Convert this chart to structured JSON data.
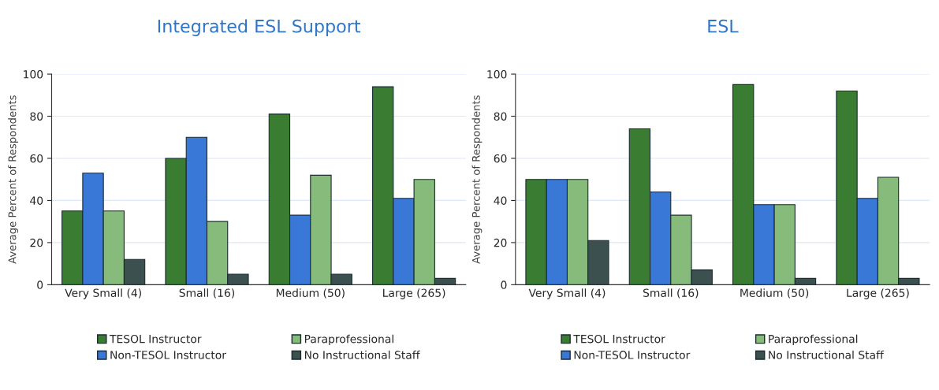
{
  "chart_data": [
    {
      "type": "bar",
      "title": "Integrated ESL Support",
      "ylabel": "Average Percent of Respondents",
      "categories": [
        "Very Small (4)",
        "Small (16)",
        "Medium (50)",
        "Large (265)"
      ],
      "ylim": [
        0,
        100
      ],
      "yticks": [
        0,
        20,
        40,
        60,
        80,
        100
      ],
      "grid": "y",
      "legend": "bottom",
      "series": [
        {
          "name": "TESOL Instructor",
          "color": "#3a7d32",
          "values": [
            35,
            60,
            81,
            94
          ]
        },
        {
          "name": "Non-TESOL Instructor",
          "color": "#3a78d8",
          "values": [
            53,
            70,
            33,
            41
          ]
        },
        {
          "name": "Paraprofessional",
          "color": "#86bb7c",
          "values": [
            35,
            30,
            52,
            50
          ]
        },
        {
          "name": "No Instructional Staff",
          "color": "#3d5050",
          "values": [
            12,
            5,
            5,
            3
          ]
        }
      ]
    },
    {
      "type": "bar",
      "title": "ESL",
      "ylabel": "Average Percent of Respondents",
      "categories": [
        "Very Small (4)",
        "Small (16)",
        "Medium (50)",
        "Large (265)"
      ],
      "ylim": [
        0,
        100
      ],
      "yticks": [
        0,
        20,
        40,
        60,
        80,
        100
      ],
      "grid": "y",
      "legend": "bottom",
      "series": [
        {
          "name": "TESOL Instructor",
          "color": "#3a7d32",
          "values": [
            50,
            74,
            95,
            92
          ]
        },
        {
          "name": "Non-TESOL Instructor",
          "color": "#3a78d8",
          "values": [
            50,
            44,
            38,
            41
          ]
        },
        {
          "name": "Paraprofessional",
          "color": "#86bb7c",
          "values": [
            50,
            33,
            38,
            51
          ]
        },
        {
          "name": "No Instructional Staff",
          "color": "#3d5050",
          "values": [
            21,
            7,
            3,
            3
          ]
        }
      ]
    }
  ]
}
